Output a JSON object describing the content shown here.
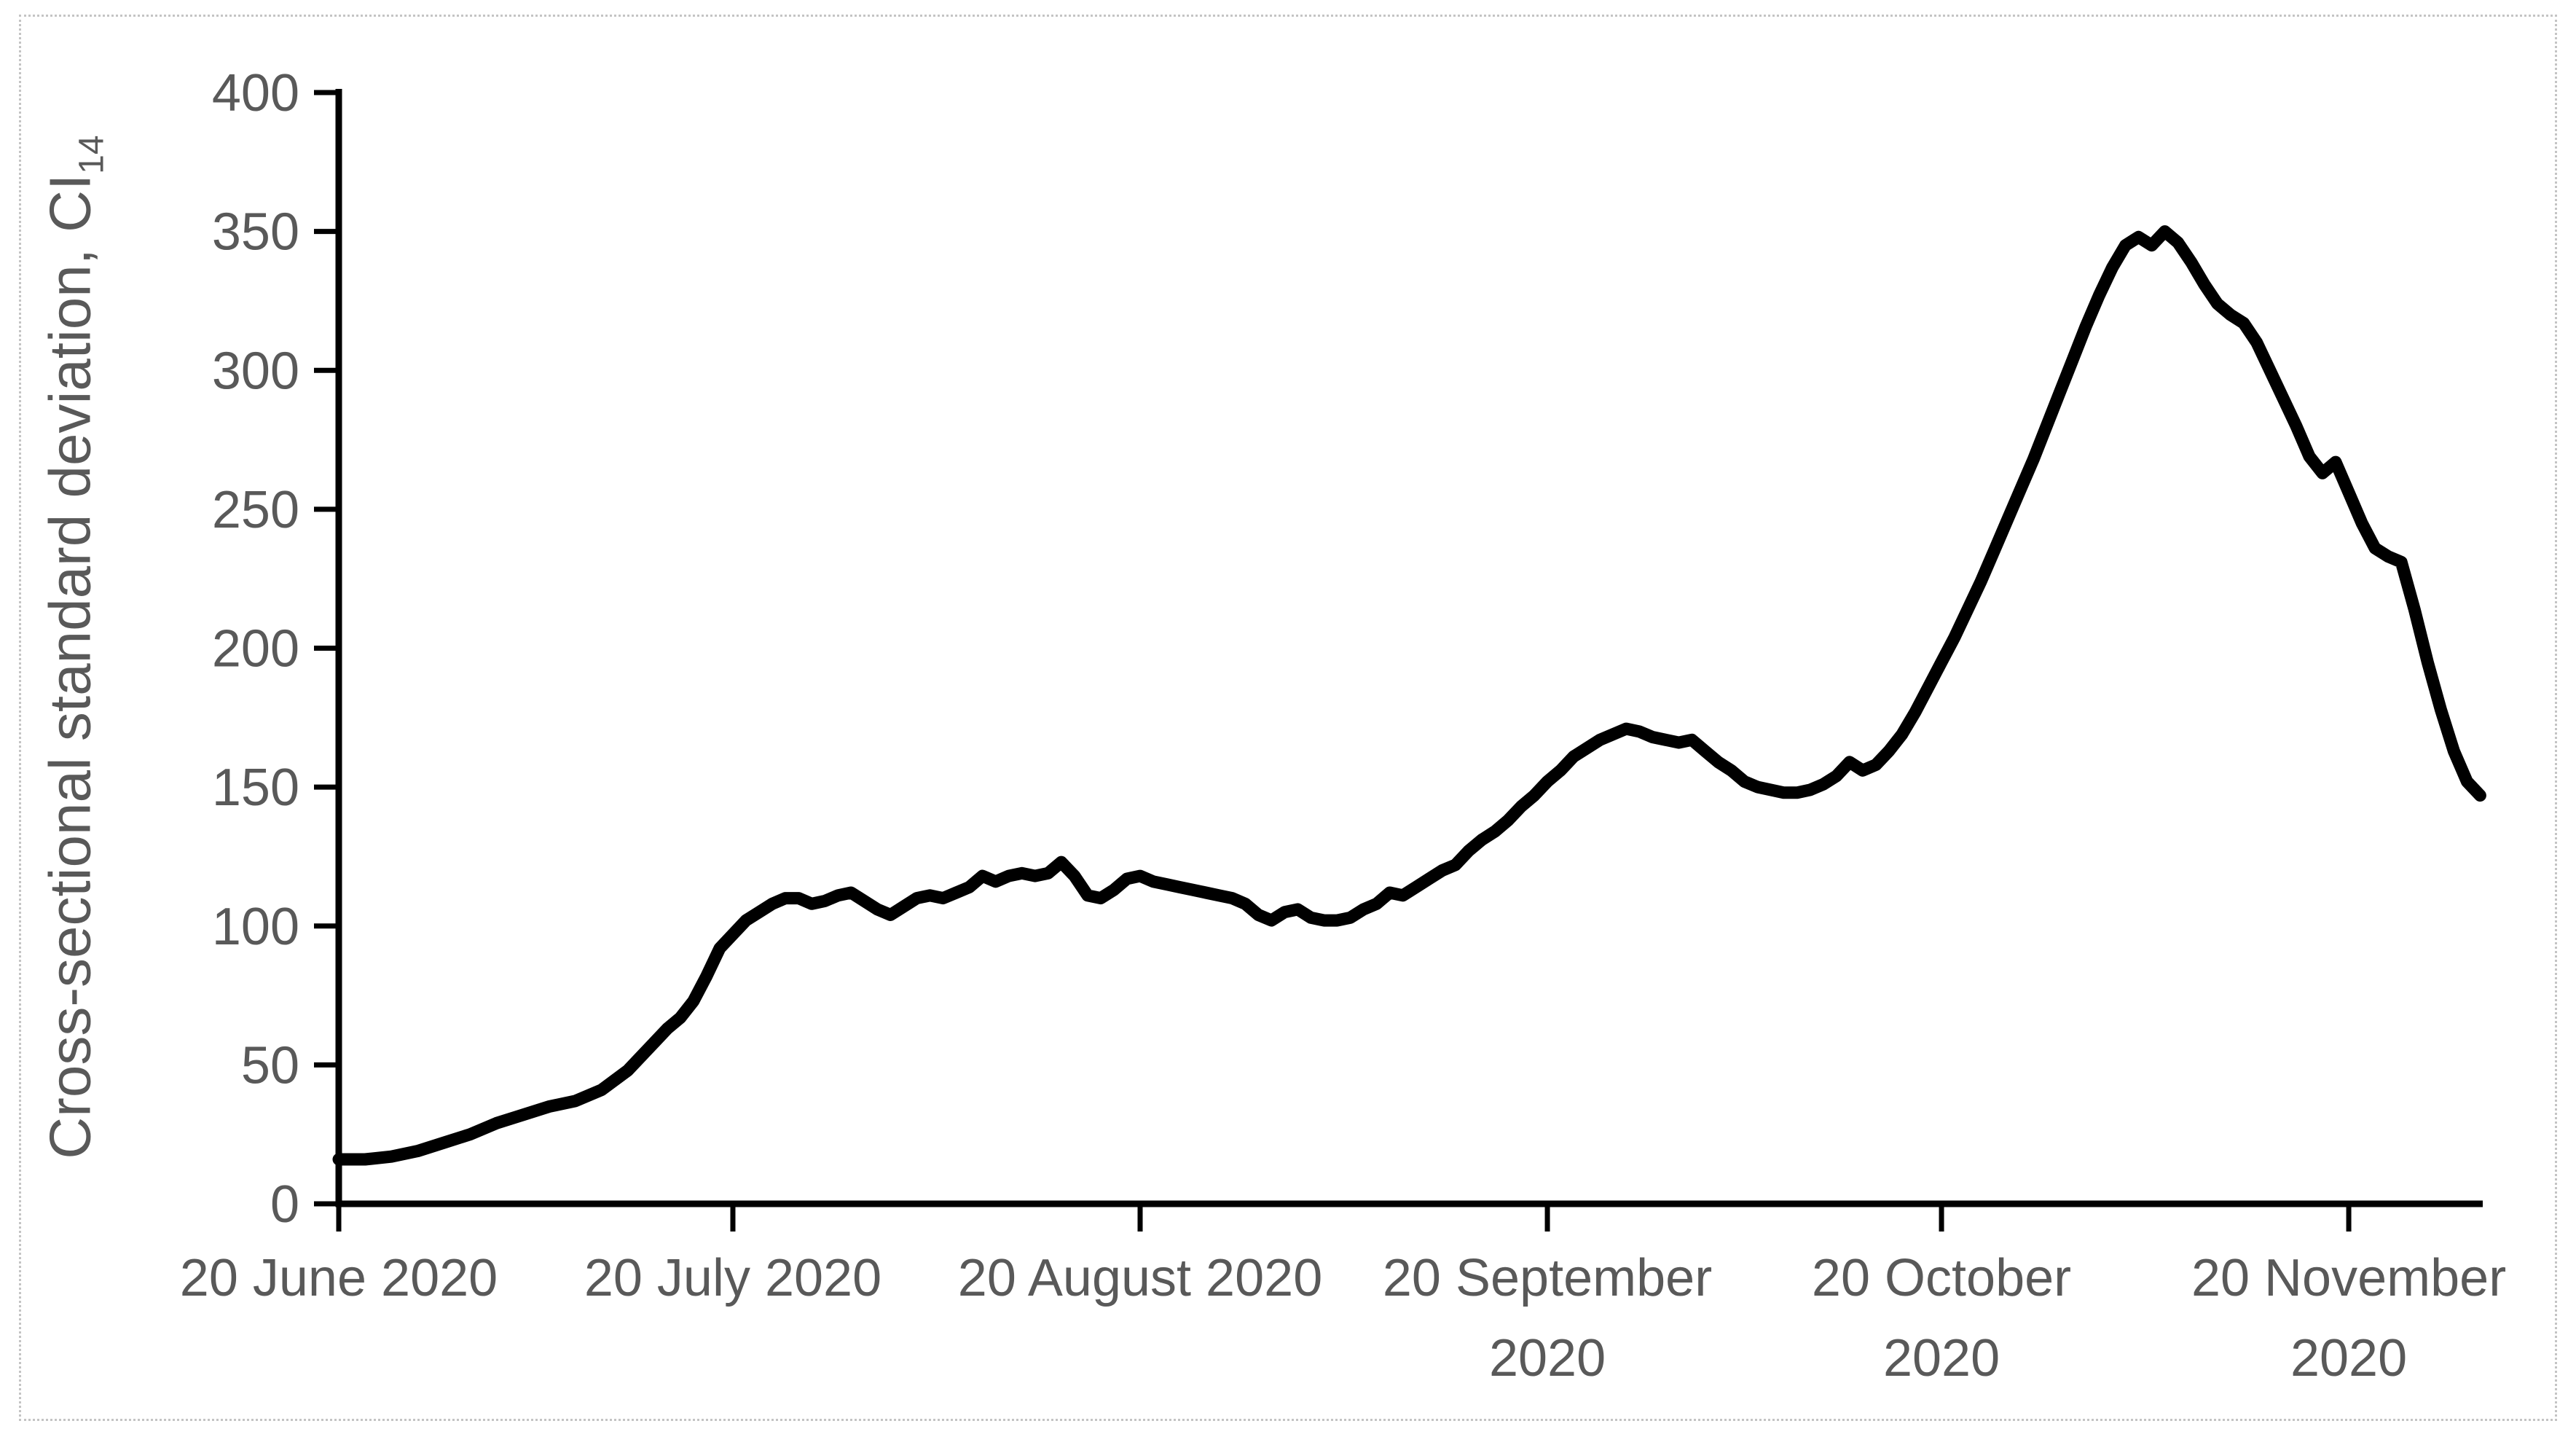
{
  "figure": {
    "background": "#ffffff",
    "border_color": "#c4c4c4"
  },
  "chart_data": {
    "type": "line",
    "title": "",
    "xlabel": "",
    "ylabel": "Cross-sectional standard deviation, CI₁₄",
    "ylabel_main": "Cross-sectional standard deviation, CI",
    "ylabel_sub": "14",
    "ylim": [
      0,
      400
    ],
    "y_ticks": [
      0,
      50,
      100,
      150,
      200,
      250,
      300,
      350,
      400
    ],
    "x_axis_span_days": 163.2,
    "grid": false,
    "legend": false,
    "line_color": "#000000",
    "line_width": 17,
    "axis_color": "#000000",
    "tick_label_color": "#595959",
    "x_ticks": [
      {
        "date": "2020-06-20",
        "lines": [
          "20 June 2020"
        ]
      },
      {
        "date": "2020-07-20",
        "lines": [
          "20 July 2020"
        ]
      },
      {
        "date": "2020-08-20",
        "lines": [
          "20 August 2020"
        ]
      },
      {
        "date": "2020-09-20",
        "lines": [
          "20 September",
          "2020"
        ]
      },
      {
        "date": "2020-10-20",
        "lines": [
          "20 October",
          "2020"
        ]
      },
      {
        "date": "2020-11-20",
        "lines": [
          "20 November",
          "2020"
        ]
      }
    ],
    "series": [
      {
        "name": "CI14",
        "dates": [
          "2020-06-20",
          "2020-06-22",
          "2020-06-24",
          "2020-06-26",
          "2020-06-28",
          "2020-06-30",
          "2020-07-02",
          "2020-07-04",
          "2020-07-06",
          "2020-07-08",
          "2020-07-10",
          "2020-07-12",
          "2020-07-13",
          "2020-07-14",
          "2020-07-15",
          "2020-07-16",
          "2020-07-17",
          "2020-07-18",
          "2020-07-19",
          "2020-07-20",
          "2020-07-21",
          "2020-07-22",
          "2020-07-23",
          "2020-07-24",
          "2020-07-25",
          "2020-07-26",
          "2020-07-27",
          "2020-07-28",
          "2020-07-29",
          "2020-07-30",
          "2020-07-31",
          "2020-08-01",
          "2020-08-02",
          "2020-08-03",
          "2020-08-04",
          "2020-08-05",
          "2020-08-06",
          "2020-08-07",
          "2020-08-08",
          "2020-08-09",
          "2020-08-10",
          "2020-08-11",
          "2020-08-12",
          "2020-08-13",
          "2020-08-14",
          "2020-08-15",
          "2020-08-16",
          "2020-08-17",
          "2020-08-18",
          "2020-08-19",
          "2020-08-20",
          "2020-08-21",
          "2020-08-22",
          "2020-08-23",
          "2020-08-24",
          "2020-08-25",
          "2020-08-26",
          "2020-08-27",
          "2020-08-28",
          "2020-08-29",
          "2020-08-30",
          "2020-08-31",
          "2020-09-01",
          "2020-09-02",
          "2020-09-03",
          "2020-09-04",
          "2020-09-05",
          "2020-09-06",
          "2020-09-07",
          "2020-09-08",
          "2020-09-09",
          "2020-09-10",
          "2020-09-11",
          "2020-09-12",
          "2020-09-13",
          "2020-09-14",
          "2020-09-15",
          "2020-09-16",
          "2020-09-17",
          "2020-09-18",
          "2020-09-19",
          "2020-09-20",
          "2020-09-21",
          "2020-09-22",
          "2020-09-23",
          "2020-09-24",
          "2020-09-25",
          "2020-09-26",
          "2020-09-27",
          "2020-09-28",
          "2020-09-29",
          "2020-09-30",
          "2020-10-01",
          "2020-10-02",
          "2020-10-03",
          "2020-10-04",
          "2020-10-05",
          "2020-10-06",
          "2020-10-07",
          "2020-10-08",
          "2020-10-09",
          "2020-10-10",
          "2020-10-11",
          "2020-10-12",
          "2020-10-13",
          "2020-10-14",
          "2020-10-15",
          "2020-10-16",
          "2020-10-17",
          "2020-10-18",
          "2020-10-19",
          "2020-10-20",
          "2020-10-21",
          "2020-10-22",
          "2020-10-23",
          "2020-10-24",
          "2020-10-25",
          "2020-10-26",
          "2020-10-27",
          "2020-10-28",
          "2020-10-29",
          "2020-10-30",
          "2020-10-31",
          "2020-11-01",
          "2020-11-02",
          "2020-11-03",
          "2020-11-04",
          "2020-11-05",
          "2020-11-06",
          "2020-11-07",
          "2020-11-08",
          "2020-11-09",
          "2020-11-10",
          "2020-11-11",
          "2020-11-12",
          "2020-11-13",
          "2020-11-14",
          "2020-11-15",
          "2020-11-16",
          "2020-11-17",
          "2020-11-18",
          "2020-11-19",
          "2020-11-20",
          "2020-11-21",
          "2020-11-22",
          "2020-11-23",
          "2020-11-24",
          "2020-11-25",
          "2020-11-26",
          "2020-11-27",
          "2020-11-28",
          "2020-11-29",
          "2020-11-30"
        ],
        "values": [
          16,
          16,
          17,
          19,
          22,
          25,
          29,
          32,
          35,
          37,
          41,
          48,
          53,
          58,
          63,
          67,
          73,
          82,
          92,
          97,
          102,
          105,
          108,
          110,
          110,
          108,
          109,
          111,
          112,
          109,
          106,
          104,
          107,
          110,
          111,
          110,
          112,
          114,
          118,
          116,
          118,
          119,
          118,
          119,
          123,
          118,
          111,
          110,
          113,
          117,
          118,
          116,
          115,
          114,
          113,
          112,
          111,
          110,
          108,
          104,
          102,
          105,
          106,
          103,
          102,
          102,
          103,
          106,
          108,
          112,
          111,
          114,
          117,
          120,
          122,
          127,
          131,
          134,
          138,
          143,
          147,
          152,
          156,
          161,
          164,
          167,
          169,
          171,
          170,
          168,
          167,
          166,
          167,
          163,
          159,
          156,
          152,
          150,
          149,
          148,
          148,
          149,
          151,
          154,
          159,
          156,
          158,
          163,
          169,
          177,
          186,
          195,
          204,
          214,
          224,
          235,
          246,
          257,
          268,
          280,
          292,
          304,
          316,
          327,
          337,
          345,
          348,
          345,
          350,
          346,
          339,
          331,
          324,
          320,
          317,
          310,
          300,
          290,
          280,
          269,
          263,
          267,
          256,
          245,
          236,
          233,
          231,
          214,
          195,
          178,
          163,
          152,
          147
        ]
      }
    ]
  }
}
